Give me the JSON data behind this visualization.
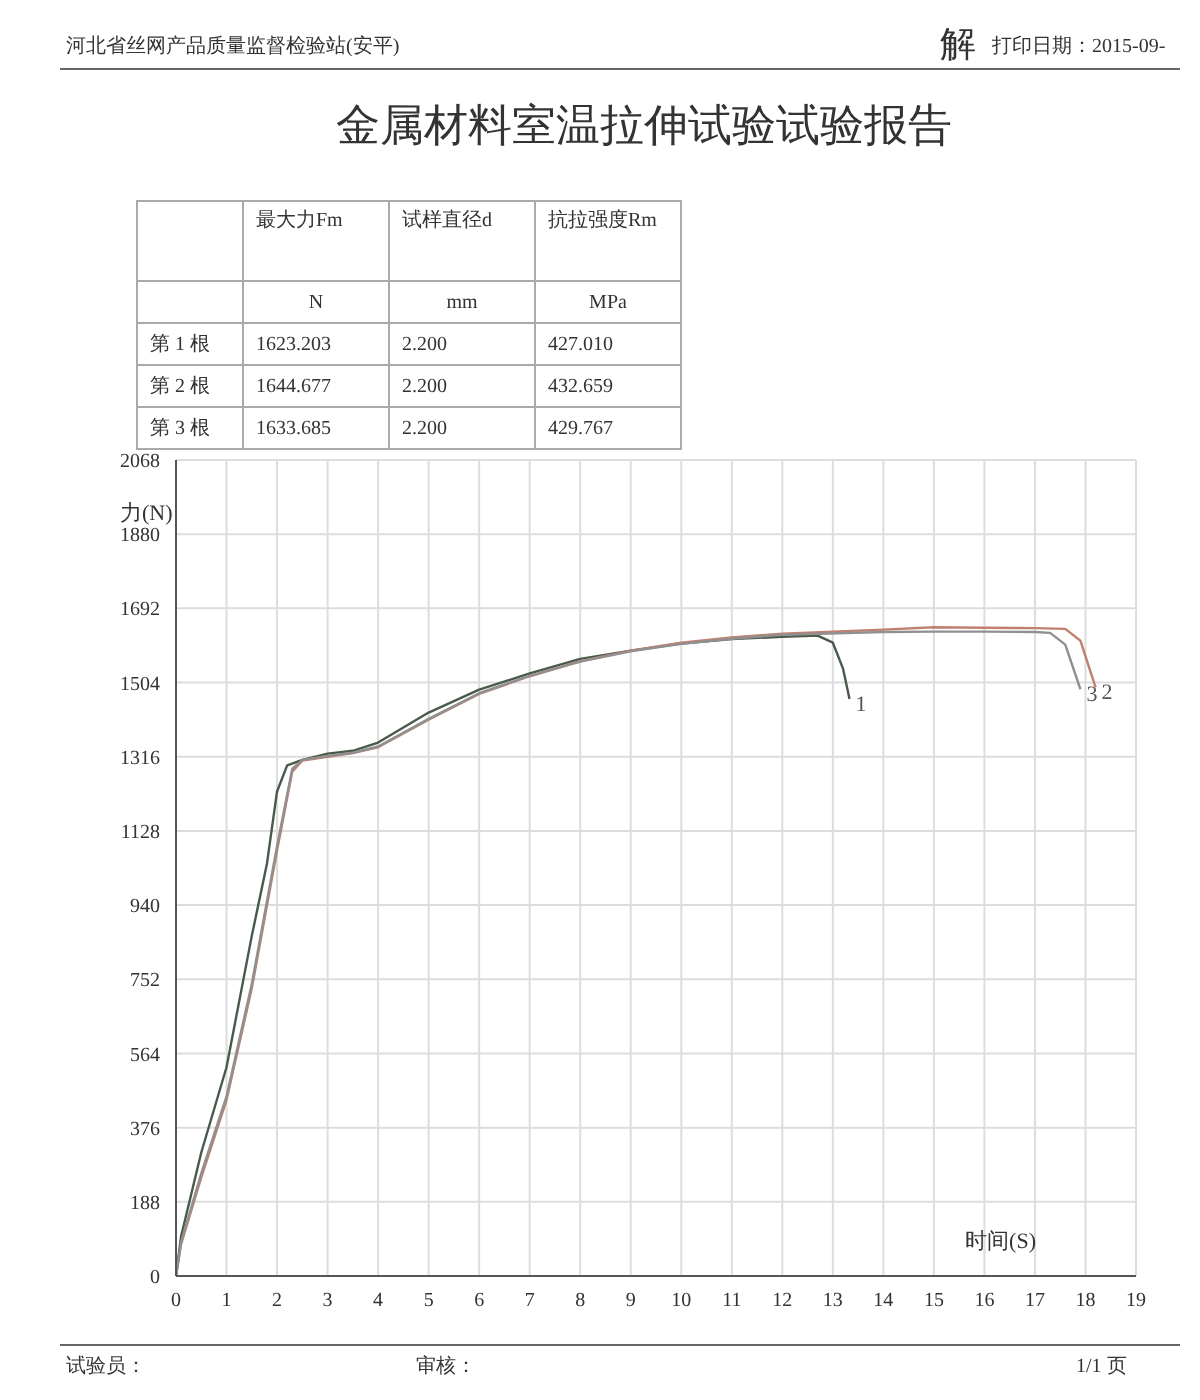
{
  "chart_data": {
    "type": "line",
    "title": "金属材料室温拉伸试验试验报告",
    "xlabel": "时间(S)",
    "ylabel": "力(N)",
    "annotations": [
      "河北省丝网产品质量监督检验站(安平)",
      "打印日期：2015-09-",
      "解",
      "最大力Fm",
      "试样直径d",
      "抗拉强度Rm",
      "N",
      "mm",
      "MPa",
      "第 1 根",
      "1623.203",
      "2.200",
      "427.010",
      "第 2 根",
      "1644.677",
      "2.200",
      "432.659",
      "第 3 根",
      "1633.685",
      "2.200",
      "429.767",
      "试验员：",
      "审核：",
      "1/1 页"
    ],
    "xlim": [
      0,
      19
    ],
    "xticks": [
      0,
      1,
      2,
      3,
      4,
      5,
      6,
      7,
      8,
      9,
      10,
      11,
      12,
      13,
      14,
      15,
      16,
      17,
      18,
      19
    ],
    "ylim": [
      0,
      2068
    ],
    "yticks": [
      0,
      188,
      376,
      564,
      752,
      940,
      1128,
      1316,
      1504,
      1692,
      1880,
      2068
    ],
    "grid": true,
    "marker": "none",
    "line_style": "solid",
    "series": [
      {
        "name": "1",
        "color": "#4a5a4a",
        "x": [
          0,
          0.1,
          0.5,
          1,
          1.5,
          1.8,
          2,
          2.2,
          2.5,
          3,
          3.5,
          4,
          5,
          6,
          7,
          8,
          9,
          10,
          11,
          12,
          12.7,
          13,
          13.2,
          13.33
        ],
        "values": [
          0,
          100,
          313,
          529,
          862,
          1045,
          1228,
          1294,
          1308,
          1324,
          1331,
          1352,
          1428,
          1486,
          1527,
          1564,
          1585,
          1603,
          1614,
          1620,
          1623,
          1605,
          1540,
          1462
        ]
      },
      {
        "name": "2",
        "color": "#c08070",
        "x": [
          0,
          0.1,
          0.5,
          1,
          1.5,
          2,
          2.3,
          2.5,
          3,
          3.5,
          4,
          5,
          6,
          7,
          8,
          9,
          10,
          11,
          12,
          14,
          15,
          16,
          17,
          17.6,
          17.9,
          18.2
        ],
        "values": [
          0,
          80,
          250,
          446,
          729,
          1078,
          1278,
          1306,
          1316,
          1325,
          1340,
          1410,
          1475,
          1520,
          1558,
          1585,
          1605,
          1618,
          1628,
          1638,
          1644,
          1643,
          1642,
          1640,
          1610,
          1492
        ]
      },
      {
        "name": "3",
        "color": "#909090",
        "x": [
          0,
          0.1,
          0.5,
          1,
          1.5,
          2,
          2.3,
          2.5,
          3,
          3.5,
          4,
          5,
          6,
          7,
          8,
          9,
          10,
          11,
          12,
          14,
          15,
          16,
          17,
          17.3,
          17.6,
          17.9
        ],
        "values": [
          0,
          85,
          260,
          455,
          740,
          1090,
          1285,
          1308,
          1318,
          1326,
          1342,
          1412,
          1477,
          1521,
          1557,
          1583,
          1602,
          1615,
          1625,
          1632,
          1633,
          1633,
          1632,
          1630,
          1600,
          1487
        ]
      }
    ]
  }
}
